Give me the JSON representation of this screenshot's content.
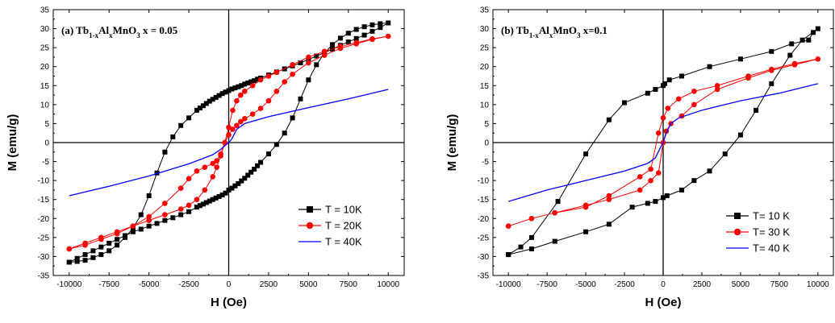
{
  "chart_data": [
    {
      "type": "line",
      "title": "(a) Tb1-xAlxMnO3 x = 0.05",
      "title_parts": {
        "prefix": "(a) Tb",
        "sub1": "1-x",
        "mid": "Al",
        "sub2": "x",
        "suffix": "MnO",
        "sub3": "3",
        "tail": "  x = 0.05"
      },
      "xlabel": "H (Oe)",
      "ylabel": "M (emu/g)",
      "xlim": [
        -11000,
        11000
      ],
      "ylim": [
        -35,
        35
      ],
      "xticks": [
        -10000,
        -7500,
        -5000,
        -2500,
        0,
        2500,
        5000,
        7500,
        10000
      ],
      "yticks": [
        -35,
        -30,
        -25,
        -20,
        -15,
        -10,
        -5,
        0,
        5,
        10,
        15,
        20,
        25,
        30,
        35
      ],
      "legend": "bottom-right",
      "series": [
        {
          "name": "T = 10K",
          "color": "#000000",
          "marker": "square",
          "x": [
            -10000,
            -9500,
            -9000,
            -8500,
            -8000,
            -7500,
            -7000,
            -6500,
            -6000,
            -5500,
            -5000,
            -4500,
            -4000,
            -3500,
            -3000,
            -2500,
            -2000,
            -1800,
            -1600,
            -1400,
            -1200,
            -1000,
            -800,
            -600,
            -400,
            -200,
            0,
            200,
            400,
            600,
            800,
            1000,
            1200,
            1400,
            1600,
            1800,
            2000,
            2500,
            3000,
            3500,
            4000,
            4500,
            5000,
            5500,
            6000,
            6500,
            7000,
            7500,
            8000,
            8500,
            9000,
            9500,
            10000,
            9500,
            9000,
            8500,
            8000,
            7500,
            7000,
            6500,
            6000,
            5500,
            5000,
            4500,
            4000,
            3500,
            3000,
            2500,
            2000,
            1800,
            1600,
            1400,
            1200,
            1000,
            800,
            600,
            400,
            200,
            0,
            -200,
            -400,
            -600,
            -800,
            -1000,
            -1200,
            -1400,
            -1600,
            -1800,
            -2000,
            -2500,
            -3000,
            -3500,
            -4000,
            -4500,
            -5000,
            -5500,
            -6000,
            -6500,
            -7000,
            -7500,
            -8000,
            -8500,
            -9000,
            -9500,
            -10000
          ],
          "y": [
            -31.5,
            -30.5,
            -29.5,
            -28.5,
            -27.5,
            -26.5,
            -25.5,
            -24.5,
            -23.5,
            -22.8,
            -22.0,
            -21.3,
            -20.5,
            -19.8,
            -19.0,
            -18.2,
            -17.0,
            -16.6,
            -16.2,
            -15.8,
            -15.4,
            -15.0,
            -14.6,
            -14.2,
            -13.8,
            -13.3,
            -12.5,
            -12.0,
            -11.4,
            -10.8,
            -10.1,
            -9.4,
            -8.6,
            -7.8,
            -7.0,
            -6.1,
            -5.2,
            -3.0,
            -0.5,
            2.5,
            6.5,
            11.5,
            16.5,
            20.5,
            23.5,
            25.8,
            27.5,
            28.8,
            29.8,
            30.5,
            31.0,
            31.3,
            31.5,
            30.3,
            29.3,
            28.3,
            27.4,
            26.5,
            25.6,
            24.6,
            23.7,
            22.8,
            21.9,
            21.0,
            20.2,
            19.4,
            18.6,
            17.8,
            17.0,
            16.7,
            16.3,
            16.0,
            15.7,
            15.4,
            15.0,
            14.7,
            14.4,
            14.1,
            13.7,
            13.3,
            12.9,
            12.4,
            11.9,
            11.4,
            10.9,
            10.3,
            9.7,
            9.1,
            8.5,
            6.5,
            4.5,
            1.5,
            -2.5,
            -8.0,
            -14.0,
            -19.0,
            -22.5,
            -25.0,
            -27.0,
            -28.5,
            -29.5,
            -30.3,
            -31.0,
            -31.3,
            -31.5
          ]
        },
        {
          "name": "T = 20K",
          "color": "#ff0000",
          "marker": "circle",
          "x": [
            -10000,
            -9000,
            -8000,
            -7000,
            -6000,
            -5000,
            -4000,
            -3000,
            -2500,
            -2000,
            -1500,
            -1000,
            -750,
            -500,
            -250,
            0,
            250,
            500,
            750,
            1000,
            1500,
            2000,
            2500,
            3000,
            3500,
            4000,
            5000,
            6000,
            7000,
            8000,
            9000,
            10000,
            9000,
            8000,
            7000,
            6000,
            5000,
            4000,
            3000,
            2500,
            2000,
            1500,
            1000,
            750,
            500,
            250,
            0,
            -250,
            -500,
            -750,
            -1000,
            -1500,
            -2000,
            -2500,
            -3000,
            -4000,
            -5000,
            -6000,
            -7000,
            -8000,
            -9000,
            -10000
          ],
          "y": [
            -28.0,
            -26.5,
            -25.0,
            -23.5,
            -22.0,
            -20.5,
            -19.0,
            -17.5,
            -16.5,
            -15.0,
            -12.5,
            -9.0,
            -6.5,
            -3.5,
            0.0,
            2.0,
            3.5,
            4.5,
            5.5,
            6.3,
            7.5,
            9.0,
            11.0,
            13.5,
            16.0,
            18.0,
            21.0,
            23.0,
            24.8,
            26.0,
            27.2,
            28.0,
            27.3,
            26.3,
            25.3,
            24.0,
            22.5,
            20.5,
            18.5,
            17.5,
            16.5,
            15.0,
            13.5,
            12.5,
            11.0,
            8.5,
            4.0,
            0.0,
            -3.0,
            -4.8,
            -5.5,
            -6.5,
            -7.5,
            -9.5,
            -12.0,
            -16.0,
            -19.5,
            -22.0,
            -24.0,
            -25.5,
            -27.0,
            -28.0
          ]
        },
        {
          "name": "T = 40K",
          "color": "#0000ff",
          "marker": "none",
          "x": [
            -10000,
            -7500,
            -5000,
            -2500,
            -1000,
            -500,
            -200,
            0,
            200,
            500,
            1000,
            2500,
            5000,
            7500,
            10000
          ],
          "y": [
            -14.0,
            -11.5,
            -8.8,
            -5.6,
            -3.2,
            -1.8,
            -0.7,
            0.0,
            1.0,
            3.5,
            5.0,
            6.8,
            9.2,
            11.5,
            14.0
          ]
        }
      ]
    },
    {
      "type": "line",
      "title": "(b) Tb1-xAlxMnO3 x=0.1",
      "title_parts": {
        "prefix": "(b) Tb",
        "sub1": "1-x",
        "mid": "Al",
        "sub2": "x",
        "suffix": "MnO",
        "sub3": "3",
        "tail": "  x=0.1"
      },
      "xlabel": "H (Oe)",
      "ylabel": "M (emu/g)",
      "xlim": [
        -11000,
        11000
      ],
      "ylim": [
        -35,
        35
      ],
      "xticks": [
        -10000,
        -7500,
        -5000,
        -2500,
        0,
        2500,
        5000,
        7500,
        10000
      ],
      "yticks": [
        -35,
        -30,
        -25,
        -20,
        -15,
        -10,
        -5,
        0,
        5,
        10,
        15,
        20,
        25,
        30,
        35
      ],
      "legend": "bottom-right",
      "series": [
        {
          "name": "T= 10 K",
          "color": "#000000",
          "marker": "square",
          "x": [
            -10000,
            -8500,
            -7000,
            -5000,
            -3500,
            -2000,
            -1000,
            -500,
            0,
            250,
            1200,
            2000,
            3000,
            4000,
            5000,
            6000,
            7000,
            8200,
            9000,
            10000,
            9700,
            9400,
            8300,
            7000,
            5000,
            3000,
            1200,
            400,
            100,
            0,
            -500,
            -1000,
            -2500,
            -3500,
            -5000,
            -6800,
            -8500,
            -9200,
            -10000
          ],
          "y": [
            -29.5,
            -28.0,
            -26.0,
            -23.5,
            -21.5,
            -17.0,
            -16.0,
            -15.5,
            -14.5,
            -14.0,
            -12.5,
            -10.0,
            -7.5,
            -3.0,
            2.0,
            8.5,
            15.5,
            23.0,
            27.0,
            30.0,
            29.0,
            27.0,
            26.0,
            24.0,
            22.0,
            20.0,
            17.5,
            16.5,
            15.5,
            15.0,
            14.0,
            13.0,
            10.5,
            6.0,
            -3.0,
            -15.5,
            -25.0,
            -27.5,
            -29.5
          ]
        },
        {
          "name": "T= 30 K",
          "color": "#ff0000",
          "marker": "circle",
          "x": [
            -10000,
            -8500,
            -7000,
            -5000,
            -3500,
            -1500,
            -800,
            -300,
            0,
            200,
            500,
            1200,
            2000,
            3500,
            5500,
            7000,
            8500,
            10000,
            8500,
            7000,
            5500,
            3500,
            2000,
            1000,
            300,
            0,
            -300,
            -800,
            -1500,
            -3500,
            -5000,
            -7000,
            -8500,
            -10000
          ],
          "y": [
            -22.0,
            -20.0,
            -18.5,
            -16.5,
            -15.0,
            -12.5,
            -10.0,
            -8.0,
            0.0,
            3.0,
            5.0,
            7.0,
            10.0,
            14.0,
            17.0,
            19.0,
            20.5,
            22.0,
            20.8,
            19.3,
            17.5,
            15.0,
            13.5,
            11.5,
            9.0,
            6.5,
            2.5,
            -7.0,
            -9.0,
            -14.0,
            -17.0,
            -18.5,
            -20.0,
            -22.0
          ]
        },
        {
          "name": "T= 40 K",
          "color": "#0000ff",
          "marker": "none",
          "x": [
            -10000,
            -7500,
            -5000,
            -2500,
            -1000,
            -500,
            -200,
            0,
            200,
            500,
            1000,
            2500,
            5000,
            7500,
            10000
          ],
          "y": [
            -15.5,
            -12.5,
            -10.0,
            -7.5,
            -5.5,
            -4.0,
            -1.5,
            0.0,
            2.5,
            5.0,
            6.5,
            8.5,
            11.0,
            13.0,
            15.5
          ]
        }
      ]
    }
  ]
}
